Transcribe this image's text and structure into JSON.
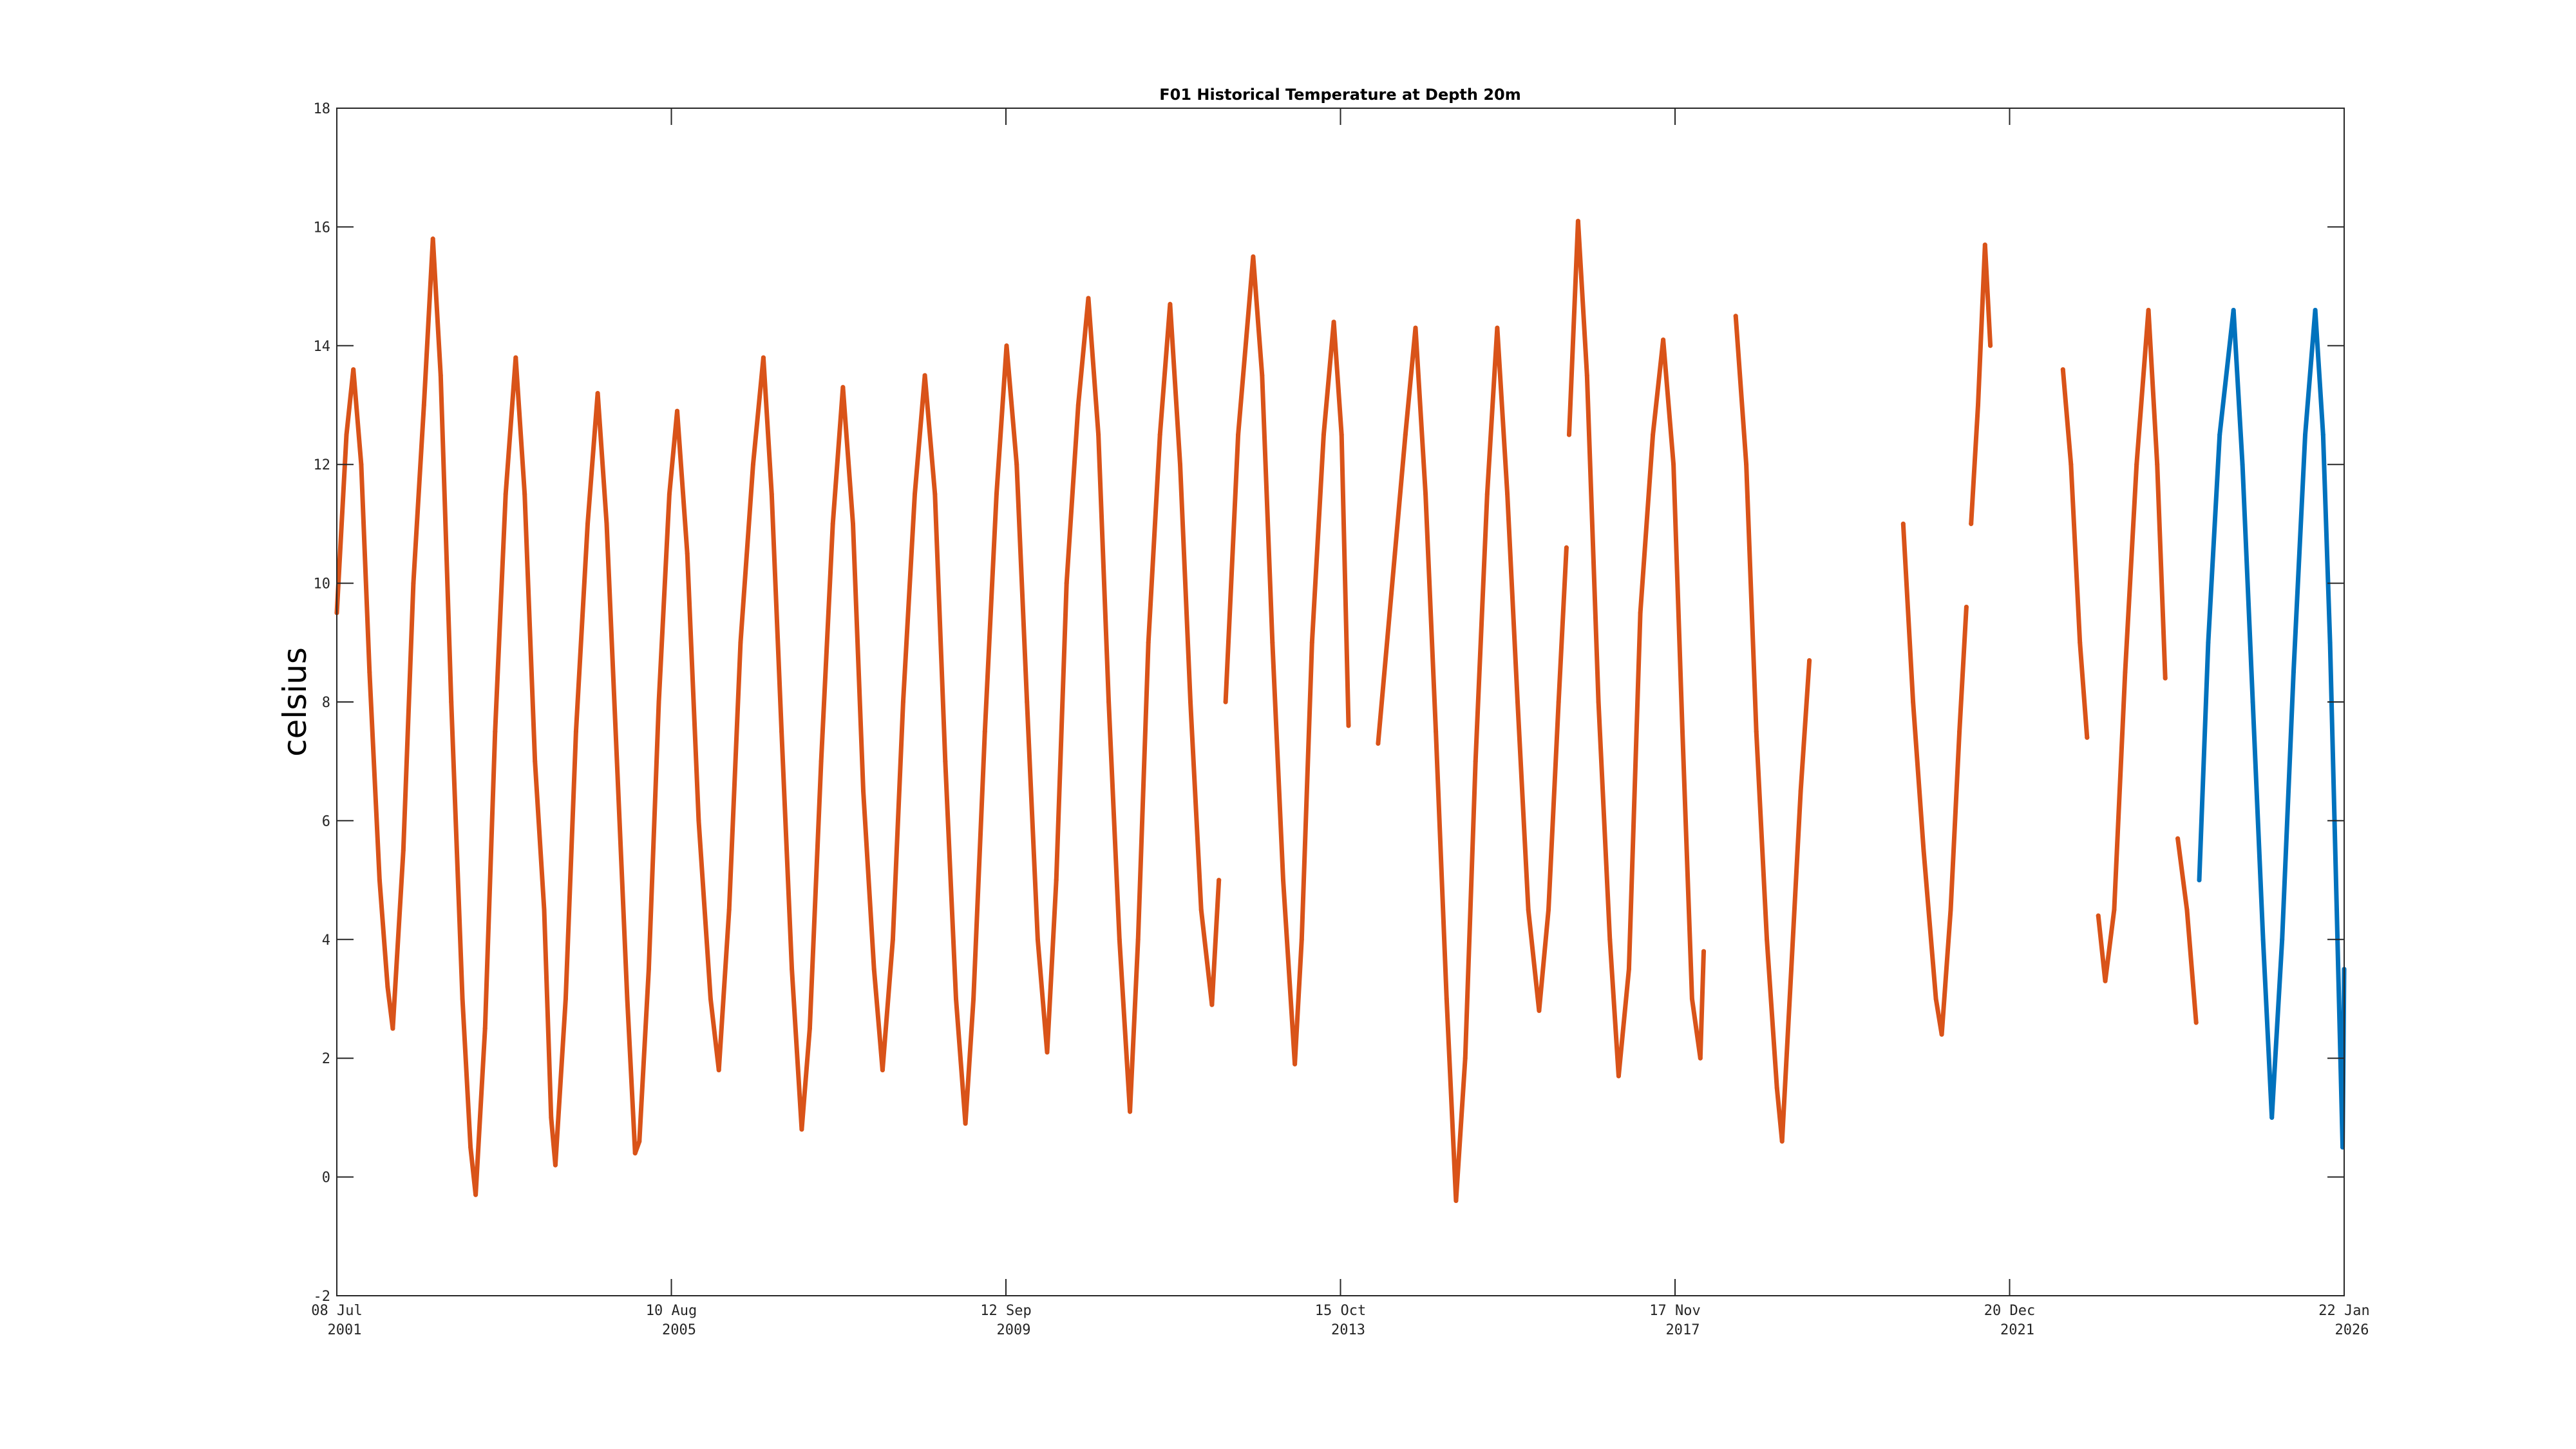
{
  "chart_data": {
    "type": "line",
    "title": "F01 Historical Temperature at Depth 20m",
    "xlabel": "",
    "ylabel": "celsius",
    "ylim": [
      -2,
      18
    ],
    "xlim": [
      "2001-07-08",
      "2026-01-22"
    ],
    "yticks": [
      -2,
      0,
      2,
      4,
      6,
      8,
      10,
      12,
      14,
      16,
      18
    ],
    "xticks": [
      {
        "date": "2001-07-08",
        "line1": "08 Jul",
        "line2": "2001"
      },
      {
        "date": "2005-08-10",
        "line1": "10 Aug",
        "line2": "2005"
      },
      {
        "date": "2009-09-12",
        "line1": "12 Sep",
        "line2": "2009"
      },
      {
        "date": "2013-10-15",
        "line1": "15 Oct",
        "line2": "2013"
      },
      {
        "date": "2017-11-17",
        "line1": "17 Nov",
        "line2": "2017"
      },
      {
        "date": "2021-12-20",
        "line1": "20 Dec",
        "line2": "2021"
      },
      {
        "date": "2026-01-22",
        "line1": "22 Jan",
        "line2": "2026"
      }
    ],
    "grid": false,
    "series": [
      {
        "color": "#D95319",
        "segments": [
          [
            [
              "2001-07-08",
              9.5
            ],
            [
              "2001-08-20",
              12.5
            ],
            [
              "2001-09-20",
              13.6
            ],
            [
              "2001-10-25",
              12.0
            ],
            [
              "2001-12-01",
              8.5
            ],
            [
              "2002-01-15",
              5.0
            ],
            [
              "2002-02-20",
              3.2
            ],
            [
              "2002-03-15",
              2.5
            ],
            [
              "2002-05-01",
              5.5
            ],
            [
              "2002-06-15",
              10.0
            ],
            [
              "2002-08-01",
              13.0
            ],
            [
              "2002-09-10",
              15.8
            ],
            [
              "2002-10-15",
              13.5
            ],
            [
              "2002-12-01",
              8.0
            ],
            [
              "2003-01-20",
              3.0
            ],
            [
              "2003-02-25",
              0.5
            ],
            [
              "2003-03-20",
              -0.3
            ],
            [
              "2003-05-01",
              2.5
            ],
            [
              "2003-06-15",
              7.5
            ],
            [
              "2003-08-01",
              11.5
            ],
            [
              "2003-09-15",
              13.8
            ],
            [
              "2003-10-25",
              11.5
            ],
            [
              "2003-12-10",
              7.0
            ],
            [
              "2004-01-20",
              4.5
            ],
            [
              "2004-02-20",
              1.0
            ],
            [
              "2004-03-10",
              0.2
            ],
            [
              "2004-04-25",
              3.0
            ],
            [
              "2004-06-10",
              7.5
            ],
            [
              "2004-08-01",
              11.0
            ],
            [
              "2004-09-15",
              13.2
            ],
            [
              "2004-10-25",
              11.0
            ],
            [
              "2004-12-10",
              7.0
            ],
            [
              "2005-01-25",
              3.0
            ],
            [
              "2005-03-01",
              0.4
            ],
            [
              "2005-03-20",
              0.6
            ],
            [
              "2005-05-01",
              3.5
            ],
            [
              "2005-06-15",
              8.0
            ],
            [
              "2005-08-01",
              11.5
            ],
            [
              "2005-09-05",
              12.9
            ],
            [
              "2005-10-20",
              10.5
            ],
            [
              "2005-12-10",
              6.0
            ],
            [
              "2006-02-01",
              3.0
            ],
            [
              "2006-03-10",
              1.8
            ],
            [
              "2006-04-25",
              4.5
            ],
            [
              "2006-06-15",
              9.0
            ],
            [
              "2006-08-10",
              12.0
            ],
            [
              "2006-09-25",
              13.8
            ],
            [
              "2006-11-01",
              11.5
            ],
            [
              "2006-12-15",
              7.5
            ],
            [
              "2007-01-30",
              3.5
            ],
            [
              "2007-03-15",
              0.8
            ],
            [
              "2007-04-20",
              2.5
            ],
            [
              "2007-06-10",
              7.0
            ],
            [
              "2007-08-01",
              11.0
            ],
            [
              "2007-09-15",
              13.3
            ],
            [
              "2007-10-30",
              11.0
            ],
            [
              "2007-12-15",
              6.5
            ],
            [
              "2008-02-01",
              3.5
            ],
            [
              "2008-03-10",
              1.8
            ],
            [
              "2008-04-25",
              4.0
            ],
            [
              "2008-06-10",
              8.0
            ],
            [
              "2008-08-01",
              11.5
            ],
            [
              "2008-09-15",
              13.5
            ],
            [
              "2008-10-30",
              11.5
            ],
            [
              "2008-12-15",
              7.0
            ],
            [
              "2009-02-01",
              3.0
            ],
            [
              "2009-03-15",
              0.9
            ],
            [
              "2009-04-20",
              3.0
            ],
            [
              "2009-06-10",
              7.5
            ],
            [
              "2009-08-01",
              11.5
            ],
            [
              "2009-09-15",
              14.0
            ],
            [
              "2009-10-30",
              12.0
            ],
            [
              "2009-12-15",
              8.0
            ],
            [
              "2010-02-01",
              4.0
            ],
            [
              "2010-03-15",
              2.1
            ],
            [
              "2010-04-25",
              5.0
            ],
            [
              "2010-06-10",
              10.0
            ],
            [
              "2010-08-01",
              13.0
            ],
            [
              "2010-09-15",
              14.8
            ],
            [
              "2010-10-30",
              12.5
            ],
            [
              "2010-12-15",
              8.0
            ],
            [
              "2011-02-01",
              4.0
            ],
            [
              "2011-03-20",
              1.1
            ],
            [
              "2011-04-25",
              4.0
            ],
            [
              "2011-06-10",
              9.0
            ],
            [
              "2011-08-01",
              12.5
            ],
            [
              "2011-09-15",
              14.7
            ],
            [
              "2011-10-30",
              12.0
            ],
            [
              "2011-12-15",
              8.0
            ],
            [
              "2012-02-01",
              4.5
            ],
            [
              "2012-03-20",
              2.9
            ],
            [
              "2012-04-20",
              5.0
            ]
          ],
          [
            [
              "2012-05-20",
              8.0
            ],
            [
              "2012-07-15",
              12.5
            ],
            [
              "2012-09-20",
              15.5
            ],
            [
              "2012-10-30",
              13.5
            ],
            [
              "2012-12-15",
              9.0
            ],
            [
              "2013-02-01",
              5.0
            ],
            [
              "2013-03-25",
              1.9
            ],
            [
              "2013-04-25",
              4.0
            ],
            [
              "2013-06-10",
              9.0
            ],
            [
              "2013-08-01",
              12.5
            ],
            [
              "2013-09-15",
              14.4
            ],
            [
              "2013-10-20",
              12.5
            ],
            [
              "2013-11-20",
              7.6
            ]
          ],
          [
            [
              "2014-04-01",
              7.3
            ],
            [
              "2014-06-15",
              10.5
            ],
            [
              "2014-08-01",
              12.5
            ],
            [
              "2014-09-15",
              14.3
            ],
            [
              "2014-10-30",
              11.5
            ],
            [
              "2014-12-15",
              7.5
            ],
            [
              "2015-02-01",
              3.0
            ],
            [
              "2015-03-15",
              -0.4
            ],
            [
              "2015-04-25",
              2.0
            ],
            [
              "2015-06-10",
              7.0
            ],
            [
              "2015-08-01",
              11.5
            ],
            [
              "2015-09-15",
              14.3
            ],
            [
              "2015-10-30",
              11.5
            ],
            [
              "2015-12-15",
              8.0
            ],
            [
              "2016-02-01",
              4.5
            ],
            [
              "2016-03-20",
              2.8
            ],
            [
              "2016-05-01",
              4.5
            ],
            [
              "2016-06-15",
              8.0
            ],
            [
              "2016-07-20",
              10.6
            ]
          ],
          [
            [
              "2016-08-01",
              12.5
            ],
            [
              "2016-09-10",
              16.1
            ],
            [
              "2016-10-20",
              13.5
            ],
            [
              "2016-12-10",
              8.0
            ],
            [
              "2017-01-30",
              4.0
            ],
            [
              "2017-03-10",
              1.7
            ],
            [
              "2017-04-25",
              3.5
            ],
            [
              "2017-06-15",
              9.5
            ],
            [
              "2017-08-10",
              12.5
            ],
            [
              "2017-09-25",
              14.1
            ],
            [
              "2017-11-10",
              12.0
            ],
            [
              "2017-12-20",
              7.5
            ],
            [
              "2018-02-01",
              3.0
            ],
            [
              "2018-03-10",
              2.0
            ],
            [
              "2018-03-25",
              3.8
            ]
          ],
          [
            [
              "2018-08-15",
              14.5
            ],
            [
              "2018-10-01",
              12.0
            ],
            [
              "2018-11-15",
              7.5
            ],
            [
              "2019-01-01",
              4.0
            ],
            [
              "2019-02-15",
              1.5
            ],
            [
              "2019-03-10",
              0.6
            ],
            [
              "2019-04-20",
              3.5
            ],
            [
              "2019-06-01",
              6.5
            ],
            [
              "2019-07-10",
              8.7
            ]
          ],
          [
            [
              "2020-09-01",
              11.0
            ],
            [
              "2020-10-15",
              8.0
            ],
            [
              "2020-12-01",
              5.5
            ],
            [
              "2021-01-25",
              3.0
            ],
            [
              "2021-02-20",
              2.4
            ],
            [
              "2021-04-01",
              4.5
            ],
            [
              "2021-05-10",
              7.5
            ],
            [
              "2021-06-10",
              9.6
            ]
          ],
          [
            [
              "2021-07-01",
              11.0
            ],
            [
              "2021-08-01",
              13.0
            ],
            [
              "2021-09-01",
              15.7
            ],
            [
              "2021-09-25",
              14.0
            ]
          ],
          [
            [
              "2022-08-15",
              13.6
            ],
            [
              "2022-09-20",
              12.0
            ],
            [
              "2022-10-30",
              9.0
            ],
            [
              "2022-12-01",
              7.4
            ]
          ],
          [
            [
              "2023-01-20",
              4.4
            ],
            [
              "2023-02-20",
              3.3
            ],
            [
              "2023-04-01",
              4.5
            ],
            [
              "2023-05-20",
              8.5
            ],
            [
              "2023-07-10",
              12.0
            ],
            [
              "2023-09-01",
              14.6
            ],
            [
              "2023-10-10",
              12.0
            ],
            [
              "2023-11-15",
              8.4
            ]
          ],
          [
            [
              "2024-01-10",
              5.7
            ],
            [
              "2024-02-20",
              4.5
            ],
            [
              "2024-04-01",
              2.6
            ]
          ]
        ]
      },
      {
        "color": "#0072BD",
        "segments": [
          [
            [
              "2024-04-15",
              5.0
            ],
            [
              "2024-05-25",
              9.0
            ],
            [
              "2024-07-15",
              12.5
            ],
            [
              "2024-09-15",
              14.6
            ],
            [
              "2024-10-25",
              12.0
            ],
            [
              "2024-12-10",
              8.0
            ],
            [
              "2025-01-25",
              4.0
            ],
            [
              "2025-03-05",
              1.0
            ],
            [
              "2025-04-20",
              4.0
            ],
            [
              "2025-06-10",
              8.5
            ],
            [
              "2025-08-01",
              12.5
            ],
            [
              "2025-09-15",
              14.6
            ],
            [
              "2025-10-20",
              12.5
            ],
            [
              "2025-11-20",
              9.0
            ],
            [
              "2025-12-20",
              4.5
            ],
            [
              "2026-01-15",
              0.5
            ],
            [
              "2026-01-22",
              3.5
            ]
          ]
        ]
      }
    ]
  }
}
